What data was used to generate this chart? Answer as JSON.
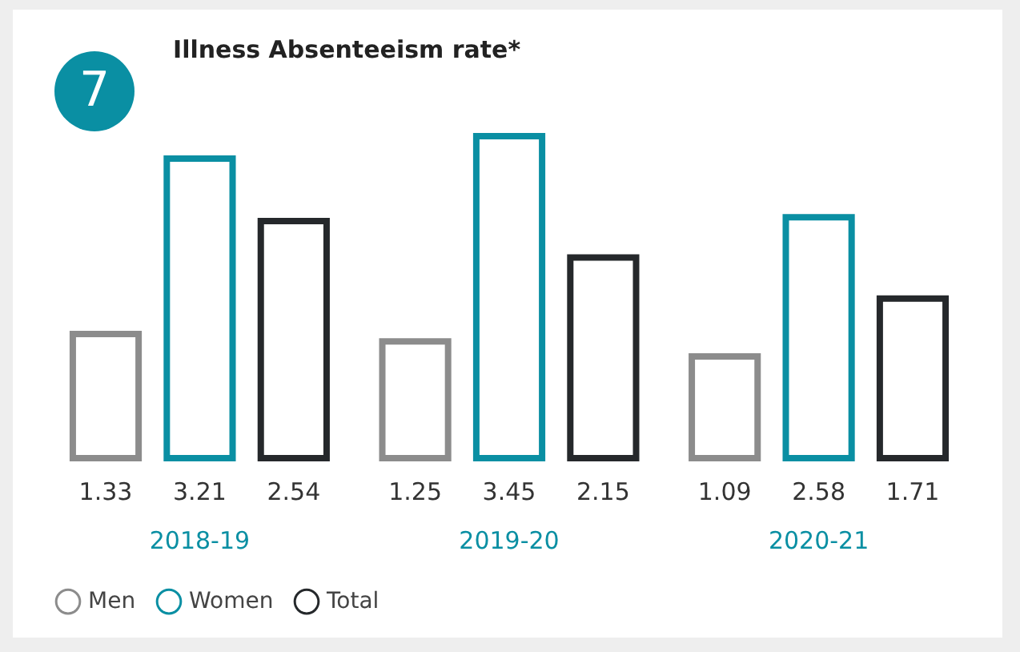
{
  "chart_data": {
    "type": "bar",
    "title": "Illness Absenteeism rate*",
    "annotations": [
      "7"
    ],
    "categories": [
      "2018-19",
      "2019-20",
      "2020-21"
    ],
    "series": [
      {
        "name": "Men",
        "color": "#8c8c8c",
        "values": [
          1.33,
          1.25,
          1.09
        ]
      },
      {
        "name": "Women",
        "color": "#0a8fa3",
        "values": [
          3.21,
          3.45,
          2.58
        ]
      },
      {
        "name": "Total",
        "color": "#25282b",
        "values": [
          2.54,
          2.15,
          1.71
        ]
      }
    ],
    "data_labels": true,
    "legend": "bottom"
  }
}
